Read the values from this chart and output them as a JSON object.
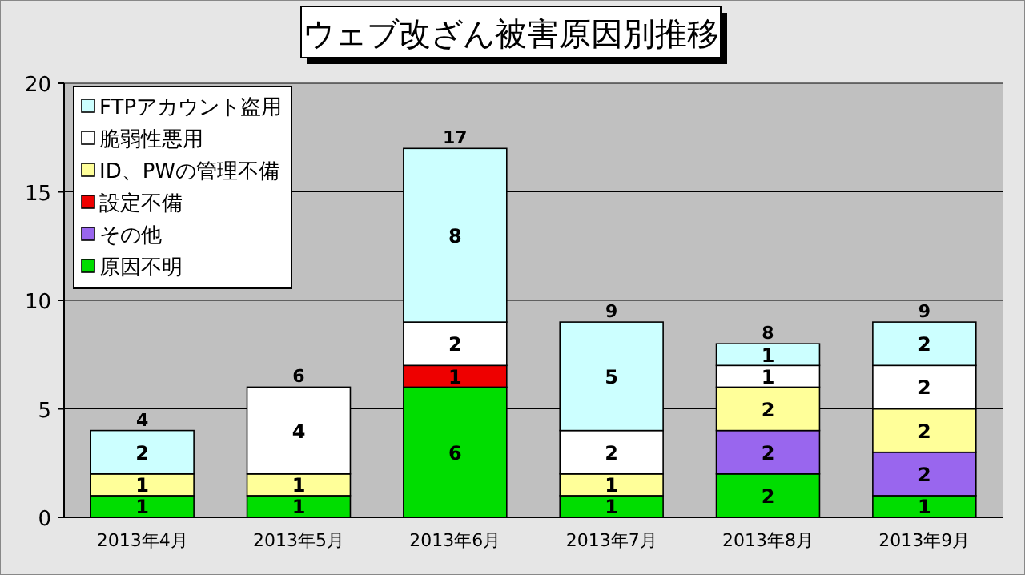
{
  "chart_data": {
    "type": "bar",
    "title": "ウェブ改ざん被害原因別推移",
    "stacked": true,
    "data_labels": true,
    "grid": "y",
    "legend": "top left",
    "categories": [
      "2013年4月",
      "2013年5月",
      "2013年6月",
      "2013年7月",
      "2013年8月",
      "2013年9月"
    ],
    "ylim": [
      0,
      20
    ],
    "yticks": [
      0,
      5,
      10,
      15,
      20
    ],
    "series": [
      {
        "name": "原因不明",
        "color": "#00dd00",
        "values": [
          1,
          1,
          6,
          1,
          2,
          1
        ]
      },
      {
        "name": "その他",
        "color": "#9966ee",
        "values": [
          null,
          null,
          null,
          null,
          2,
          2
        ]
      },
      {
        "name": "設定不備",
        "color": "#ee0000",
        "values": [
          null,
          null,
          1,
          null,
          null,
          null
        ]
      },
      {
        "name": "ID、PWの管理不備",
        "color": "#ffff99",
        "values": [
          1,
          1,
          null,
          1,
          2,
          2
        ]
      },
      {
        "name": "脆弱性悪用",
        "color": "#ffffff",
        "values": [
          null,
          4,
          2,
          2,
          1,
          2
        ]
      },
      {
        "name": "FTPアカウント盗用",
        "color": "#ccffff",
        "values": [
          2,
          null,
          8,
          5,
          1,
          2
        ]
      }
    ],
    "totals": [
      "4",
      "6",
      "17",
      "9",
      "8",
      "9"
    ]
  }
}
